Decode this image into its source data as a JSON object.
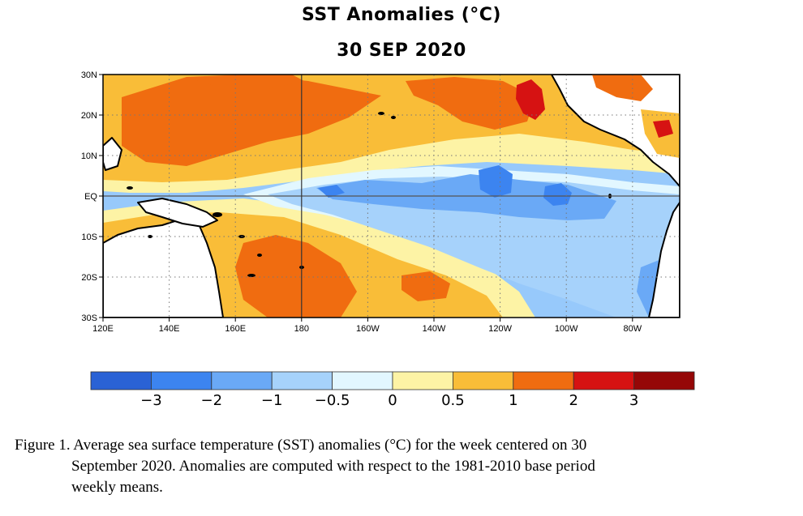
{
  "header": {
    "title": "SST Anomalies (°C)",
    "date": "30 SEP 2020"
  },
  "map": {
    "lat_labels": [
      "30N",
      "20N",
      "10N",
      "EQ",
      "10S",
      "20S",
      "30S"
    ],
    "lon_labels": [
      "120E",
      "140E",
      "160E",
      "180",
      "160W",
      "140W",
      "120W",
      "100W",
      "80W"
    ],
    "palette": {
      "ocean_default": "#97c9fb",
      "land": "#ffffff",
      "coast": "#000000"
    }
  },
  "colorbar": {
    "colors": [
      "#2a62d5",
      "#3c84f0",
      "#6aa9f6",
      "#a6d2fb",
      "#e2f7ff",
      "#fdf3a5",
      "#f9bd38",
      "#f06c10",
      "#d61212",
      "#950707"
    ],
    "labels": [
      "−3",
      "−2",
      "−1",
      "−0.5",
      "0",
      "0.5",
      "1",
      "2",
      "3"
    ]
  },
  "caption": {
    "line1": "Figure 1. Average sea surface temperature (SST) anomalies (°C) for the week centered on 30",
    "line2": "September 2020.  Anomalies are computed with respect to the 1981-2010 base period",
    "line3": "weekly means."
  }
}
